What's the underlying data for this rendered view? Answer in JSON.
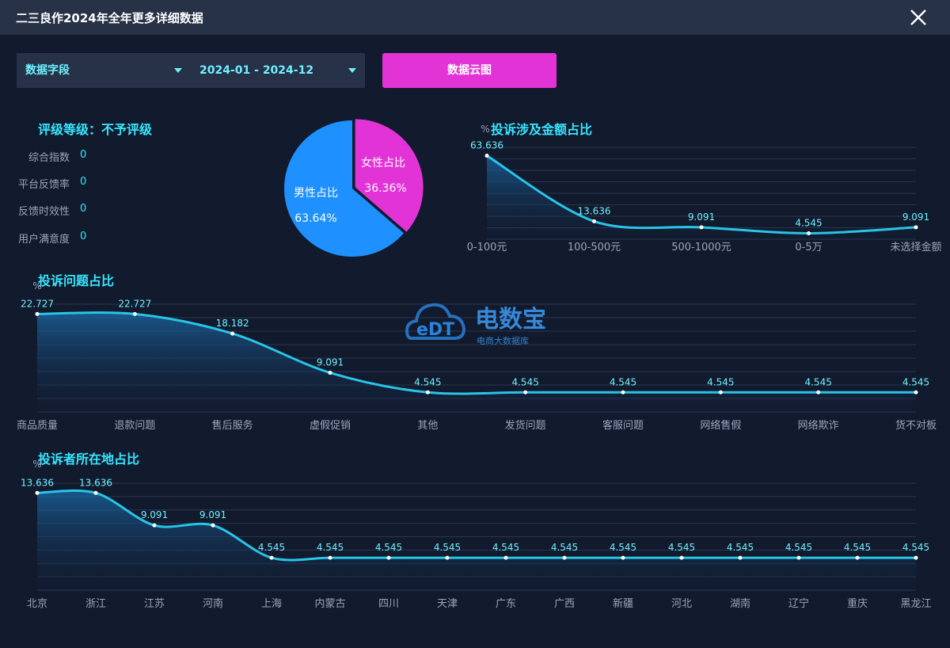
{
  "window": {
    "title": "二三良作2024年全年更多详细数据"
  },
  "filters": {
    "field_label": "数据字段",
    "date_range": "2024-01 - 2024-12"
  },
  "actions": {
    "wordcloud_label": "数据云图"
  },
  "rating": {
    "title": "评级等级：不予评级",
    "items": [
      {
        "label": "综合指数",
        "value": "0"
      },
      {
        "label": "平台反馈率",
        "value": "0"
      },
      {
        "label": "反馈时效性",
        "value": "0"
      },
      {
        "label": "用户满意度",
        "value": "0"
      }
    ]
  },
  "watermark": {
    "brand": "电数宝",
    "sub": "电商大数据库",
    "logo_text": "eDT"
  },
  "colors": {
    "male": "#1e90ff",
    "female": "#e233d7",
    "line": "#27c5e8",
    "accent": "#37e6ff",
    "button": "#e233d7"
  },
  "chart_data": [
    {
      "type": "pie",
      "categories": [
        "男性占比",
        "女性占比"
      ],
      "values": [
        63.64,
        36.36
      ],
      "value_labels": [
        "63.64%",
        "36.36%"
      ]
    },
    {
      "type": "area",
      "title": "投诉涉及金额占比",
      "ylabel": "%",
      "categories": [
        "0-100元",
        "100-500元",
        "500-1000元",
        "0-5万",
        "未选择金额"
      ],
      "values": [
        63.636,
        13.636,
        9.091,
        4.545,
        9.091
      ],
      "value_labels": [
        "63.636",
        "13.636",
        "9.091",
        "4.545",
        "9.091"
      ],
      "ylim": [
        0,
        70
      ]
    },
    {
      "type": "area",
      "title": "投诉问题占比",
      "ylabel": "%",
      "categories": [
        "商品质量",
        "退款问题",
        "售后服务",
        "虚假促销",
        "其他",
        "发货问题",
        "客服问题",
        "网络售假",
        "网络欺诈",
        "货不对板"
      ],
      "values": [
        22.727,
        22.727,
        18.182,
        9.091,
        4.545,
        4.545,
        4.545,
        4.545,
        4.545,
        4.545
      ],
      "value_labels": [
        "22.727",
        "22.727",
        "18.182",
        "9.091",
        "4.545",
        "4.545",
        "4.545",
        "4.545",
        "4.545",
        "4.545"
      ],
      "ylim": [
        0,
        25
      ]
    },
    {
      "type": "area",
      "title": "投诉者所在地占比",
      "ylabel": "%",
      "categories": [
        "北京",
        "浙江",
        "江苏",
        "河南",
        "上海",
        "内蒙古",
        "四川",
        "天津",
        "广东",
        "广西",
        "新疆",
        "河北",
        "湖南",
        "辽宁",
        "重庆",
        "黑龙江"
      ],
      "values": [
        13.636,
        13.636,
        9.091,
        9.091,
        4.545,
        4.545,
        4.545,
        4.545,
        4.545,
        4.545,
        4.545,
        4.545,
        4.545,
        4.545,
        4.545,
        4.545
      ],
      "value_labels": [
        "13.636",
        "13.636",
        "9.091",
        "9.091",
        "4.545",
        "4.545",
        "4.545",
        "4.545",
        "4.545",
        "4.545",
        "4.545",
        "4.545",
        "4.545",
        "4.545",
        "4.545",
        "4.545"
      ],
      "ylim": [
        0,
        15
      ]
    }
  ]
}
